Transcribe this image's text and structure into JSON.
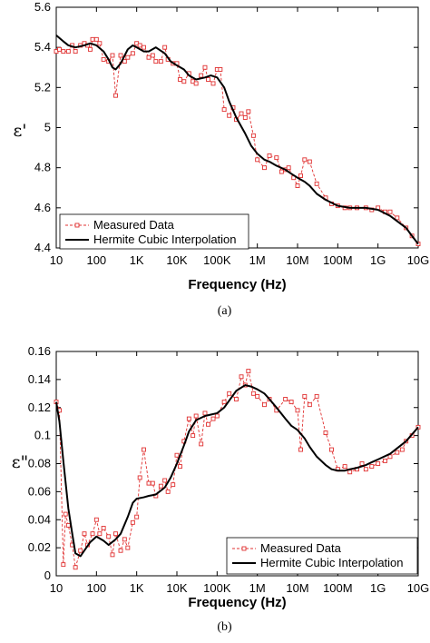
{
  "chart_data": [
    {
      "type": "line",
      "caption": "(a)",
      "xlabel": "Frequency (Hz)",
      "ylabel": "ε'",
      "xscale": "log",
      "xlim": [
        10,
        10000000000
      ],
      "ylim": [
        4.4,
        5.6
      ],
      "xticks": [
        {
          "v": 10,
          "label": "10"
        },
        {
          "v": 100,
          "label": "100"
        },
        {
          "v": 1000,
          "label": "1K"
        },
        {
          "v": 10000,
          "label": "10K"
        },
        {
          "v": 100000,
          "label": "100K"
        },
        {
          "v": 1000000,
          "label": "1M"
        },
        {
          "v": 10000000,
          "label": "10M"
        },
        {
          "v": 100000000,
          "label": "100M"
        },
        {
          "v": 1000000000,
          "label": "1G"
        },
        {
          "v": 10000000000,
          "label": "10G"
        }
      ],
      "yticks": [
        {
          "v": 4.4,
          "label": "4.4"
        },
        {
          "v": 4.6,
          "label": "4.6"
        },
        {
          "v": 4.8,
          "label": "4.8"
        },
        {
          "v": 5,
          "label": "5"
        },
        {
          "v": 5.2,
          "label": "5.2"
        },
        {
          "v": 5.4,
          "label": "5.4"
        },
        {
          "v": 5.6,
          "label": "5.6"
        }
      ],
      "legend_position": "bottom-left",
      "series": [
        {
          "name": "Measured Data",
          "style": "dashed-square",
          "color": "#e03030",
          "x": [
            10,
            12,
            15,
            20,
            25,
            30,
            40,
            50,
            60,
            70,
            80,
            100,
            120,
            150,
            200,
            250,
            300,
            400,
            500,
            600,
            800,
            1000,
            1200,
            1500,
            2000,
            2500,
            3000,
            4000,
            5000,
            6000,
            8000,
            10000,
            12000,
            15000,
            20000,
            25000,
            30000,
            40000,
            50000,
            60000,
            80000,
            100000,
            120000,
            150000,
            200000,
            250000,
            300000,
            400000,
            500000,
            600000,
            800000,
            1000000,
            1500000,
            2000000,
            3000000,
            4000000,
            5000000,
            6000000,
            8000000,
            10000000,
            12000000,
            15000000,
            20000000,
            30000000,
            50000000,
            70000000,
            100000000,
            150000000,
            200000000,
            300000000,
            500000000,
            700000000,
            1000000000,
            1500000000,
            2000000000,
            3000000000,
            5000000000,
            7000000000,
            10000000000
          ],
          "values": [
            5.38,
            5.39,
            5.38,
            5.38,
            5.41,
            5.38,
            5.41,
            5.42,
            5.41,
            5.39,
            5.44,
            5.44,
            5.42,
            5.34,
            5.33,
            5.36,
            5.16,
            5.36,
            5.33,
            5.35,
            5.37,
            5.42,
            5.41,
            5.4,
            5.35,
            5.36,
            5.33,
            5.33,
            5.4,
            5.34,
            5.32,
            5.32,
            5.24,
            5.23,
            5.27,
            5.23,
            5.22,
            5.26,
            5.3,
            5.24,
            5.22,
            5.29,
            5.29,
            5.09,
            5.06,
            5.1,
            5.04,
            5.07,
            5.05,
            5.08,
            4.96,
            4.84,
            4.8,
            4.86,
            4.85,
            4.78,
            4.79,
            4.8,
            4.75,
            4.71,
            4.76,
            4.84,
            4.83,
            4.72,
            4.65,
            4.62,
            4.61,
            4.6,
            4.6,
            4.6,
            4.6,
            4.59,
            4.6,
            4.58,
            4.58,
            4.55,
            4.5,
            4.46,
            4.42
          ]
        },
        {
          "name": "Hermite Cubic Interpolation",
          "style": "solid",
          "color": "#000000",
          "x": [
            10,
            15,
            20,
            30,
            50,
            70,
            100,
            150,
            200,
            250,
            300,
            400,
            600,
            800,
            1000,
            1500,
            2000,
            3000,
            5000,
            7000,
            10000,
            15000,
            20000,
            30000,
            50000,
            70000,
            100000,
            150000,
            200000,
            300000,
            500000,
            700000,
            1000000,
            1500000,
            2000000,
            3000000,
            5000000,
            7000000,
            10000000,
            15000000,
            20000000,
            30000000,
            50000000,
            100000000,
            200000000,
            500000000,
            1000000000,
            2000000000,
            5000000000,
            7000000000,
            10000000000
          ],
          "values": [
            5.46,
            5.43,
            5.41,
            5.4,
            5.41,
            5.42,
            5.41,
            5.38,
            5.34,
            5.3,
            5.29,
            5.32,
            5.39,
            5.41,
            5.4,
            5.38,
            5.38,
            5.4,
            5.37,
            5.33,
            5.31,
            5.29,
            5.26,
            5.24,
            5.25,
            5.26,
            5.25,
            5.2,
            5.13,
            5.05,
            4.97,
            4.91,
            4.87,
            4.84,
            4.83,
            4.81,
            4.79,
            4.77,
            4.75,
            4.73,
            4.71,
            4.67,
            4.64,
            4.61,
            4.6,
            4.6,
            4.59,
            4.56,
            4.5,
            4.46,
            4.42
          ]
        }
      ]
    },
    {
      "type": "line",
      "caption": "(b)",
      "xlabel": "Frequency (Hz)",
      "ylabel": "ε\"",
      "xscale": "log",
      "xlim": [
        10,
        10000000000
      ],
      "ylim": [
        0,
        0.16
      ],
      "xticks": [
        {
          "v": 10,
          "label": "10"
        },
        {
          "v": 100,
          "label": "100"
        },
        {
          "v": 1000,
          "label": "1K"
        },
        {
          "v": 10000,
          "label": "10K"
        },
        {
          "v": 100000,
          "label": "100K"
        },
        {
          "v": 1000000,
          "label": "1M"
        },
        {
          "v": 10000000,
          "label": "10M"
        },
        {
          "v": 100000000,
          "label": "100M"
        },
        {
          "v": 1000000000,
          "label": "1G"
        },
        {
          "v": 10000000000,
          "label": "10G"
        }
      ],
      "yticks": [
        {
          "v": 0,
          "label": "0"
        },
        {
          "v": 0.02,
          "label": "0.02"
        },
        {
          "v": 0.04,
          "label": "0.04"
        },
        {
          "v": 0.06,
          "label": "0.06"
        },
        {
          "v": 0.08,
          "label": "0.08"
        },
        {
          "v": 0.1,
          "label": "0.1"
        },
        {
          "v": 0.12,
          "label": "0.12"
        },
        {
          "v": 0.14,
          "label": "0.14"
        },
        {
          "v": 0.16,
          "label": "0.16"
        }
      ],
      "legend_position": "bottom-right",
      "series": [
        {
          "name": "Measured Data",
          "style": "dashed-square",
          "color": "#e03030",
          "x": [
            10,
            12,
            15,
            17,
            20,
            25,
            30,
            40,
            50,
            60,
            80,
            100,
            120,
            150,
            200,
            250,
            300,
            400,
            500,
            600,
            800,
            1000,
            1200,
            1500,
            2000,
            2500,
            3000,
            4000,
            5000,
            6000,
            8000,
            10000,
            12000,
            15000,
            20000,
            25000,
            30000,
            40000,
            50000,
            60000,
            80000,
            100000,
            150000,
            200000,
            300000,
            400000,
            500000,
            600000,
            800000,
            1000000,
            1500000,
            2000000,
            3000000,
            5000000,
            7000000,
            10000000,
            12000000,
            15000000,
            20000000,
            30000000,
            50000000,
            70000000,
            100000000,
            150000000,
            200000000,
            300000000,
            400000000,
            500000000,
            700000000,
            1000000000,
            1500000000,
            2000000000,
            3000000000,
            4000000000,
            5000000000,
            7000000000,
            10000000000
          ],
          "values": [
            0.124,
            0.118,
            0.008,
            0.044,
            0.036,
            0.022,
            0.006,
            0.018,
            0.03,
            0.022,
            0.03,
            0.04,
            0.03,
            0.034,
            0.028,
            0.015,
            0.03,
            0.018,
            0.026,
            0.02,
            0.038,
            0.042,
            0.07,
            0.09,
            0.066,
            0.066,
            0.057,
            0.064,
            0.068,
            0.06,
            0.065,
            0.086,
            0.078,
            0.096,
            0.112,
            0.1,
            0.114,
            0.094,
            0.116,
            0.108,
            0.112,
            0.114,
            0.124,
            0.13,
            0.126,
            0.142,
            0.136,
            0.146,
            0.13,
            0.128,
            0.122,
            0.126,
            0.118,
            0.126,
            0.124,
            0.118,
            0.09,
            0.128,
            0.122,
            0.128,
            0.102,
            0.09,
            0.076,
            0.078,
            0.074,
            0.076,
            0.08,
            0.076,
            0.078,
            0.08,
            0.082,
            0.085,
            0.088,
            0.09,
            0.096,
            0.1,
            0.106
          ]
        },
        {
          "name": "Hermite Cubic Interpolation",
          "style": "solid",
          "color": "#000000",
          "x": [
            10,
            12,
            15,
            20,
            25,
            30,
            40,
            50,
            70,
            100,
            150,
            200,
            300,
            400,
            600,
            800,
            1000,
            1500,
            2000,
            3000,
            5000,
            7000,
            10000,
            15000,
            20000,
            30000,
            50000,
            70000,
            100000,
            150000,
            200000,
            300000,
            500000,
            700000,
            1000000,
            1500000,
            2000000,
            3000000,
            5000000,
            7000000,
            10000000,
            15000000,
            20000000,
            30000000,
            50000000,
            70000000,
            100000000,
            150000000,
            200000000,
            300000000,
            500000000,
            700000000,
            1000000000,
            2000000000,
            5000000000,
            10000000000
          ],
          "values": [
            0.124,
            0.11,
            0.082,
            0.048,
            0.03,
            0.016,
            0.014,
            0.018,
            0.024,
            0.028,
            0.025,
            0.022,
            0.026,
            0.03,
            0.042,
            0.052,
            0.055,
            0.056,
            0.057,
            0.058,
            0.063,
            0.07,
            0.08,
            0.093,
            0.103,
            0.111,
            0.114,
            0.115,
            0.116,
            0.12,
            0.125,
            0.132,
            0.136,
            0.135,
            0.133,
            0.13,
            0.126,
            0.12,
            0.112,
            0.107,
            0.104,
            0.098,
            0.092,
            0.085,
            0.079,
            0.076,
            0.075,
            0.075,
            0.076,
            0.077,
            0.079,
            0.081,
            0.083,
            0.087,
            0.096,
            0.106
          ]
        }
      ]
    }
  ]
}
